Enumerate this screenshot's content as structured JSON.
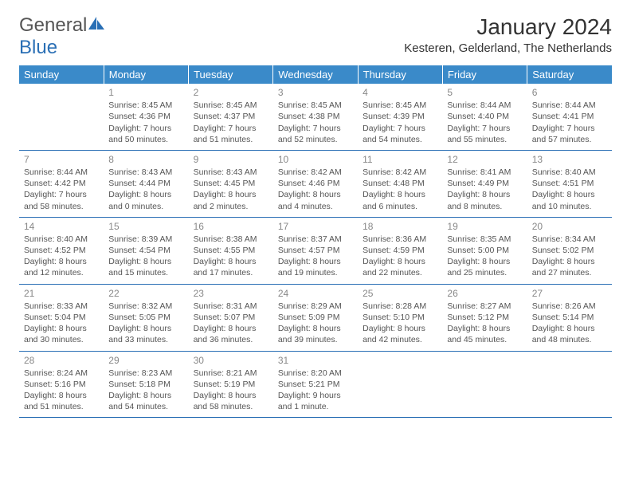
{
  "logo": {
    "word1": "General",
    "word2": "Blue"
  },
  "title": "January 2024",
  "location": "Kesteren, Gelderland, The Netherlands",
  "colors": {
    "header_bg": "#3a8ac9",
    "header_text": "#ffffff",
    "rule": "#2a6fb5",
    "daynum": "#888888",
    "body_text": "#555555"
  },
  "day_headers": [
    "Sunday",
    "Monday",
    "Tuesday",
    "Wednesday",
    "Thursday",
    "Friday",
    "Saturday"
  ],
  "weeks": [
    [
      null,
      {
        "n": "1",
        "sr": "Sunrise: 8:45 AM",
        "ss": "Sunset: 4:36 PM",
        "dl1": "Daylight: 7 hours",
        "dl2": "and 50 minutes."
      },
      {
        "n": "2",
        "sr": "Sunrise: 8:45 AM",
        "ss": "Sunset: 4:37 PM",
        "dl1": "Daylight: 7 hours",
        "dl2": "and 51 minutes."
      },
      {
        "n": "3",
        "sr": "Sunrise: 8:45 AM",
        "ss": "Sunset: 4:38 PM",
        "dl1": "Daylight: 7 hours",
        "dl2": "and 52 minutes."
      },
      {
        "n": "4",
        "sr": "Sunrise: 8:45 AM",
        "ss": "Sunset: 4:39 PM",
        "dl1": "Daylight: 7 hours",
        "dl2": "and 54 minutes."
      },
      {
        "n": "5",
        "sr": "Sunrise: 8:44 AM",
        "ss": "Sunset: 4:40 PM",
        "dl1": "Daylight: 7 hours",
        "dl2": "and 55 minutes."
      },
      {
        "n": "6",
        "sr": "Sunrise: 8:44 AM",
        "ss": "Sunset: 4:41 PM",
        "dl1": "Daylight: 7 hours",
        "dl2": "and 57 minutes."
      }
    ],
    [
      {
        "n": "7",
        "sr": "Sunrise: 8:44 AM",
        "ss": "Sunset: 4:42 PM",
        "dl1": "Daylight: 7 hours",
        "dl2": "and 58 minutes."
      },
      {
        "n": "8",
        "sr": "Sunrise: 8:43 AM",
        "ss": "Sunset: 4:44 PM",
        "dl1": "Daylight: 8 hours",
        "dl2": "and 0 minutes."
      },
      {
        "n": "9",
        "sr": "Sunrise: 8:43 AM",
        "ss": "Sunset: 4:45 PM",
        "dl1": "Daylight: 8 hours",
        "dl2": "and 2 minutes."
      },
      {
        "n": "10",
        "sr": "Sunrise: 8:42 AM",
        "ss": "Sunset: 4:46 PM",
        "dl1": "Daylight: 8 hours",
        "dl2": "and 4 minutes."
      },
      {
        "n": "11",
        "sr": "Sunrise: 8:42 AM",
        "ss": "Sunset: 4:48 PM",
        "dl1": "Daylight: 8 hours",
        "dl2": "and 6 minutes."
      },
      {
        "n": "12",
        "sr": "Sunrise: 8:41 AM",
        "ss": "Sunset: 4:49 PM",
        "dl1": "Daylight: 8 hours",
        "dl2": "and 8 minutes."
      },
      {
        "n": "13",
        "sr": "Sunrise: 8:40 AM",
        "ss": "Sunset: 4:51 PM",
        "dl1": "Daylight: 8 hours",
        "dl2": "and 10 minutes."
      }
    ],
    [
      {
        "n": "14",
        "sr": "Sunrise: 8:40 AM",
        "ss": "Sunset: 4:52 PM",
        "dl1": "Daylight: 8 hours",
        "dl2": "and 12 minutes."
      },
      {
        "n": "15",
        "sr": "Sunrise: 8:39 AM",
        "ss": "Sunset: 4:54 PM",
        "dl1": "Daylight: 8 hours",
        "dl2": "and 15 minutes."
      },
      {
        "n": "16",
        "sr": "Sunrise: 8:38 AM",
        "ss": "Sunset: 4:55 PM",
        "dl1": "Daylight: 8 hours",
        "dl2": "and 17 minutes."
      },
      {
        "n": "17",
        "sr": "Sunrise: 8:37 AM",
        "ss": "Sunset: 4:57 PM",
        "dl1": "Daylight: 8 hours",
        "dl2": "and 19 minutes."
      },
      {
        "n": "18",
        "sr": "Sunrise: 8:36 AM",
        "ss": "Sunset: 4:59 PM",
        "dl1": "Daylight: 8 hours",
        "dl2": "and 22 minutes."
      },
      {
        "n": "19",
        "sr": "Sunrise: 8:35 AM",
        "ss": "Sunset: 5:00 PM",
        "dl1": "Daylight: 8 hours",
        "dl2": "and 25 minutes."
      },
      {
        "n": "20",
        "sr": "Sunrise: 8:34 AM",
        "ss": "Sunset: 5:02 PM",
        "dl1": "Daylight: 8 hours",
        "dl2": "and 27 minutes."
      }
    ],
    [
      {
        "n": "21",
        "sr": "Sunrise: 8:33 AM",
        "ss": "Sunset: 5:04 PM",
        "dl1": "Daylight: 8 hours",
        "dl2": "and 30 minutes."
      },
      {
        "n": "22",
        "sr": "Sunrise: 8:32 AM",
        "ss": "Sunset: 5:05 PM",
        "dl1": "Daylight: 8 hours",
        "dl2": "and 33 minutes."
      },
      {
        "n": "23",
        "sr": "Sunrise: 8:31 AM",
        "ss": "Sunset: 5:07 PM",
        "dl1": "Daylight: 8 hours",
        "dl2": "and 36 minutes."
      },
      {
        "n": "24",
        "sr": "Sunrise: 8:29 AM",
        "ss": "Sunset: 5:09 PM",
        "dl1": "Daylight: 8 hours",
        "dl2": "and 39 minutes."
      },
      {
        "n": "25",
        "sr": "Sunrise: 8:28 AM",
        "ss": "Sunset: 5:10 PM",
        "dl1": "Daylight: 8 hours",
        "dl2": "and 42 minutes."
      },
      {
        "n": "26",
        "sr": "Sunrise: 8:27 AM",
        "ss": "Sunset: 5:12 PM",
        "dl1": "Daylight: 8 hours",
        "dl2": "and 45 minutes."
      },
      {
        "n": "27",
        "sr": "Sunrise: 8:26 AM",
        "ss": "Sunset: 5:14 PM",
        "dl1": "Daylight: 8 hours",
        "dl2": "and 48 minutes."
      }
    ],
    [
      {
        "n": "28",
        "sr": "Sunrise: 8:24 AM",
        "ss": "Sunset: 5:16 PM",
        "dl1": "Daylight: 8 hours",
        "dl2": "and 51 minutes."
      },
      {
        "n": "29",
        "sr": "Sunrise: 8:23 AM",
        "ss": "Sunset: 5:18 PM",
        "dl1": "Daylight: 8 hours",
        "dl2": "and 54 minutes."
      },
      {
        "n": "30",
        "sr": "Sunrise: 8:21 AM",
        "ss": "Sunset: 5:19 PM",
        "dl1": "Daylight: 8 hours",
        "dl2": "and 58 minutes."
      },
      {
        "n": "31",
        "sr": "Sunrise: 8:20 AM",
        "ss": "Sunset: 5:21 PM",
        "dl1": "Daylight: 9 hours",
        "dl2": "and 1 minute."
      },
      null,
      null,
      null
    ]
  ]
}
